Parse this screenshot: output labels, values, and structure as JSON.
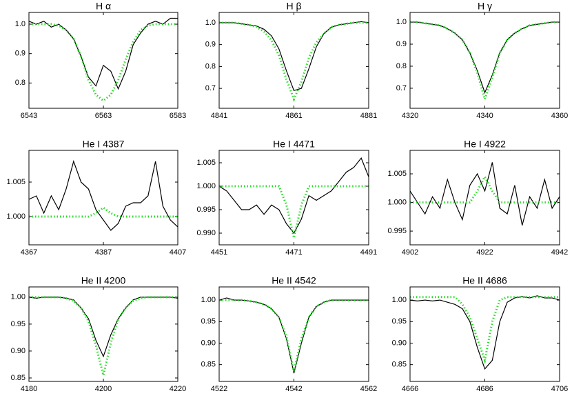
{
  "chart_data": [
    {
      "type": "line",
      "title": "H α",
      "x": [
        6543,
        6545,
        6547,
        6549,
        6551,
        6553,
        6555,
        6557,
        6559,
        6561,
        6563,
        6565,
        6567,
        6569,
        6571,
        6573,
        6575,
        6577,
        6579,
        6581,
        6583
      ],
      "xlim": [
        6543,
        6583
      ],
      "xticks": [
        6543,
        6563,
        6583
      ],
      "ylim": [
        0.714,
        1.04
      ],
      "yticks": [
        {
          "value": 0.8,
          "label": "0.8"
        },
        {
          "value": 0.9,
          "label": "0.9"
        },
        {
          "value": 1,
          "label": "1.0"
        }
      ],
      "series": [
        {
          "color": "#000000",
          "line_style": "solid",
          "values": [
            1.01,
            1.0,
            1.01,
            0.99,
            1.0,
            0.98,
            0.95,
            0.89,
            0.82,
            0.79,
            0.86,
            0.84,
            0.78,
            0.84,
            0.93,
            0.97,
            1.0,
            1.01,
            1.0,
            1.02,
            1.02
          ]
        },
        {
          "color": "#22dd22",
          "line_style": "dotted",
          "values": [
            1.0,
            1.0,
            1.0,
            1.0,
            0.995,
            0.98,
            0.95,
            0.89,
            0.81,
            0.76,
            0.74,
            0.76,
            0.81,
            0.88,
            0.94,
            0.98,
            0.995,
            1.0,
            1.0,
            1.0,
            1.0
          ]
        }
      ]
    },
    {
      "type": "line",
      "title": "H β",
      "x": [
        4841,
        4843,
        4845,
        4847,
        4849,
        4851,
        4853,
        4855,
        4857,
        4859,
        4861,
        4863,
        4865,
        4867,
        4869,
        4871,
        4873,
        4875,
        4877,
        4879,
        4881
      ],
      "xlim": [
        4841,
        4881
      ],
      "xticks": [
        4841,
        4861,
        4881
      ],
      "ylim": [
        0.609,
        1.047
      ],
      "yticks": [
        0.7,
        0.8,
        0.9,
        {
          "value": 1,
          "label": "1.0"
        }
      ],
      "series": [
        {
          "color": "#000000",
          "line_style": "solid",
          "values": [
            1.0,
            1.0,
            1.0,
            0.995,
            0.99,
            0.985,
            0.97,
            0.94,
            0.88,
            0.78,
            0.69,
            0.7,
            0.79,
            0.89,
            0.95,
            0.98,
            0.99,
            0.995,
            1.0,
            1.005,
            1.0
          ]
        },
        {
          "color": "#22dd22",
          "line_style": "dotted",
          "values": [
            1.0,
            1.0,
            1.0,
            0.995,
            0.99,
            0.98,
            0.96,
            0.92,
            0.85,
            0.74,
            0.65,
            0.73,
            0.84,
            0.91,
            0.95,
            0.98,
            0.99,
            0.995,
            1.0,
            1.0,
            1.0
          ]
        }
      ]
    },
    {
      "type": "line",
      "title": "H γ",
      "x": [
        4320,
        4322,
        4324,
        4326,
        4328,
        4330,
        4332,
        4334,
        4336,
        4338,
        4340,
        4342,
        4344,
        4346,
        4348,
        4350,
        4352,
        4354,
        4356,
        4358,
        4360
      ],
      "xlim": [
        4320,
        4360
      ],
      "xticks": [
        4320,
        4340,
        4360
      ],
      "ylim": [
        0.609,
        1.044
      ],
      "yticks": [
        0.7,
        0.8,
        0.9,
        {
          "value": 1,
          "label": "1.0"
        }
      ],
      "series": [
        {
          "color": "#000000",
          "line_style": "solid",
          "values": [
            1.0,
            1.0,
            0.995,
            0.99,
            0.985,
            0.97,
            0.95,
            0.92,
            0.86,
            0.78,
            0.68,
            0.76,
            0.86,
            0.92,
            0.95,
            0.97,
            0.985,
            0.99,
            0.995,
            1.0,
            1.0
          ]
        },
        {
          "color": "#22dd22",
          "line_style": "dotted",
          "values": [
            1.0,
            1.0,
            0.995,
            0.99,
            0.985,
            0.97,
            0.95,
            0.92,
            0.86,
            0.77,
            0.65,
            0.75,
            0.86,
            0.92,
            0.95,
            0.97,
            0.985,
            0.99,
            0.995,
            1.0,
            1.0
          ]
        }
      ]
    },
    {
      "type": "line",
      "title": "He I 4387",
      "x": [
        4367,
        4369,
        4371,
        4373,
        4375,
        4377,
        4379,
        4381,
        4383,
        4385,
        4387,
        4389,
        4391,
        4393,
        4395,
        4397,
        4399,
        4401,
        4403,
        4405,
        4407
      ],
      "xlim": [
        4367,
        4407
      ],
      "xticks": [
        4367,
        4387,
        4407
      ],
      "ylim": [
        0.9959,
        1.0096
      ],
      "yticks": [
        {
          "value": 1,
          "label": "1.000"
        },
        1.005
      ],
      "series": [
        {
          "color": "#000000",
          "line_style": "solid",
          "values": [
            1.0025,
            1.003,
            1.0005,
            1.003,
            1.001,
            1.004,
            1.008,
            1.005,
            1.004,
            1.001,
            0.9995,
            0.998,
            0.999,
            1.0015,
            1.002,
            1.002,
            1.003,
            1.008,
            1.0015,
            0.9995,
            0.9985
          ]
        },
        {
          "color": "#22dd22",
          "line_style": "dotted",
          "values": [
            1.0,
            1.0,
            1.0,
            1.0,
            1.0,
            1.0,
            1.0,
            1.0,
            1.0,
            1.0005,
            1.0013,
            1.0005,
            1.0,
            1.0,
            1.0,
            1.0,
            1.0,
            1.0,
            1.0,
            1.0,
            1.0
          ]
        }
      ]
    },
    {
      "type": "line",
      "title": "He I 4471",
      "x": [
        4451,
        4453,
        4455,
        4457,
        4459,
        4461,
        4463,
        4465,
        4467,
        4469,
        4471,
        4473,
        4475,
        4477,
        4479,
        4481,
        4483,
        4485,
        4487,
        4489,
        4491
      ],
      "xlim": [
        4451,
        4491
      ],
      "xticks": [
        4451,
        4471,
        4491
      ],
      "ylim": [
        0.9875,
        1.00765
      ],
      "yticks": [
        {
          "value": 0.99,
          "label": "0.990"
        },
        0.995,
        {
          "value": 1,
          "label": "1.000"
        },
        1.005
      ],
      "series": [
        {
          "color": "#000000",
          "line_style": "solid",
          "values": [
            1.0,
            0.999,
            0.997,
            0.995,
            0.995,
            0.996,
            0.994,
            0.996,
            0.995,
            0.992,
            0.99,
            0.993,
            0.998,
            0.997,
            0.998,
            0.999,
            1.001,
            1.003,
            1.004,
            1.006,
            1.002
          ]
        },
        {
          "color": "#22dd22",
          "line_style": "dotted",
          "values": [
            1.0,
            1.0,
            1.0,
            1.0,
            1.0,
            1.0,
            1.0,
            1.0,
            1.0,
            0.996,
            0.989,
            0.996,
            1.0,
            1.0,
            1.0,
            1.0,
            1.0,
            1.0,
            1.0,
            1.0,
            1.0
          ]
        }
      ]
    },
    {
      "type": "line",
      "title": "He I 4922",
      "x": [
        4902,
        4904,
        4906,
        4908,
        4910,
        4912,
        4914,
        4916,
        4918,
        4920,
        4922,
        4924,
        4926,
        4928,
        4930,
        4932,
        4934,
        4936,
        4938,
        4940,
        4942
      ],
      "xlim": [
        4902,
        4942
      ],
      "xticks": [
        4902,
        4922,
        4942
      ],
      "ylim": [
        0.9926,
        1.0091
      ],
      "yticks": [
        0.995,
        {
          "value": 1,
          "label": "1.000"
        },
        1.005
      ],
      "series": [
        {
          "color": "#000000",
          "line_style": "solid",
          "values": [
            1.002,
            1.0,
            0.998,
            1.001,
            0.999,
            1.004,
            1.0,
            0.997,
            1.003,
            1.005,
            1.002,
            1.007,
            0.999,
            0.998,
            1.003,
            0.996,
            1.001,
            0.999,
            1.004,
            0.999,
            1.001
          ]
        },
        {
          "color": "#22dd22",
          "line_style": "dotted",
          "values": [
            1.0,
            1.0,
            1.0,
            1.0,
            1.0,
            1.0,
            1.0,
            1.0,
            1.0,
            1.002,
            1.0045,
            1.002,
            1.0,
            1.0,
            1.0,
            1.0,
            1.0,
            1.0,
            1.0,
            1.0,
            1.0
          ]
        }
      ]
    },
    {
      "type": "line",
      "title": "He II 4200",
      "x": [
        4180,
        4182,
        4184,
        4186,
        4188,
        4190,
        4192,
        4194,
        4196,
        4198,
        4200,
        4202,
        4204,
        4206,
        4208,
        4210,
        4212,
        4214,
        4216,
        4218,
        4220
      ],
      "xlim": [
        4180,
        4220
      ],
      "xticks": [
        4180,
        4200,
        4220
      ],
      "ylim": [
        0.8436,
        1.019
      ],
      "yticks": [
        0.85,
        {
          "value": 0.9,
          "label": "0.90"
        },
        0.95,
        {
          "value": 1,
          "label": "1.00"
        }
      ],
      "series": [
        {
          "color": "#000000",
          "line_style": "solid",
          "values": [
            1.0,
            0.998,
            1.0,
            1.0,
            1.0,
            0.998,
            0.995,
            0.98,
            0.96,
            0.92,
            0.89,
            0.93,
            0.96,
            0.98,
            0.995,
            1.0,
            1.0,
            1.0,
            1.0,
            1.0,
            0.998
          ]
        },
        {
          "color": "#22dd22",
          "line_style": "dotted",
          "values": [
            1.0,
            1.0,
            1.0,
            1.0,
            1.0,
            0.998,
            0.993,
            0.98,
            0.955,
            0.91,
            0.855,
            0.915,
            0.96,
            0.98,
            0.993,
            0.998,
            1.0,
            1.0,
            1.0,
            1.0,
            1.0
          ]
        }
      ]
    },
    {
      "type": "line",
      "title": "He II 4542",
      "x": [
        4522,
        4524,
        4526,
        4528,
        4530,
        4532,
        4534,
        4536,
        4538,
        4540,
        4542,
        4544,
        4546,
        4548,
        4550,
        4552,
        4554,
        4556,
        4558,
        4560,
        4562
      ],
      "xlim": [
        4522,
        4562
      ],
      "xticks": [
        4522,
        4542,
        4562
      ],
      "ylim": [
        0.811,
        1.0306
      ],
      "yticks": [
        0.85,
        {
          "value": 0.9,
          "label": "0.90"
        },
        0.95,
        {
          "value": 1,
          "label": "1.00"
        }
      ],
      "series": [
        {
          "color": "#000000",
          "line_style": "solid",
          "values": [
            1.0,
            1.005,
            1.0,
            1.0,
            0.998,
            0.995,
            0.99,
            0.98,
            0.96,
            0.91,
            0.83,
            0.9,
            0.96,
            0.985,
            0.995,
            1.0,
            1.0,
            1.0,
            1.0,
            1.0,
            1.0
          ]
        },
        {
          "color": "#22dd22",
          "line_style": "dotted",
          "values": [
            1.0,
            1.0,
            1.0,
            1.0,
            0.998,
            0.995,
            0.99,
            0.98,
            0.96,
            0.915,
            0.835,
            0.91,
            0.96,
            0.985,
            0.995,
            1.0,
            1.0,
            1.0,
            1.0,
            1.0,
            1.0
          ]
        }
      ]
    },
    {
      "type": "line",
      "title": "He II 4686",
      "x": [
        4666,
        4668,
        4670,
        4672,
        4674,
        4676,
        4678,
        4680,
        4682,
        4684,
        4686,
        4688,
        4690,
        4692,
        4694,
        4696,
        4698,
        4700,
        4702,
        4704,
        4706
      ],
      "xlim": [
        4666,
        4706
      ],
      "xticks": [
        4666,
        4686,
        4706
      ],
      "ylim": [
        0.811,
        1.0306
      ],
      "yticks": [
        0.85,
        {
          "value": 0.9,
          "label": "0.90"
        },
        0.95,
        {
          "value": 1,
          "label": "1.00"
        }
      ],
      "series": [
        {
          "color": "#000000",
          "line_style": "solid",
          "values": [
            1.0,
            0.998,
            1.0,
            0.998,
            1.0,
            0.995,
            0.99,
            0.98,
            0.95,
            0.89,
            0.84,
            0.86,
            0.95,
            0.995,
            1.005,
            1.008,
            1.005,
            1.01,
            1.005,
            1.005,
            1.0
          ]
        },
        {
          "color": "#22dd22",
          "line_style": "dotted",
          "values": [
            1.007,
            1.007,
            1.007,
            1.007,
            1.007,
            1.007,
            1.007,
            0.99,
            0.96,
            0.91,
            0.86,
            0.95,
            1.0,
            1.007,
            1.007,
            1.007,
            1.007,
            1.007,
            1.007,
            1.007,
            1.007
          ]
        }
      ]
    }
  ]
}
